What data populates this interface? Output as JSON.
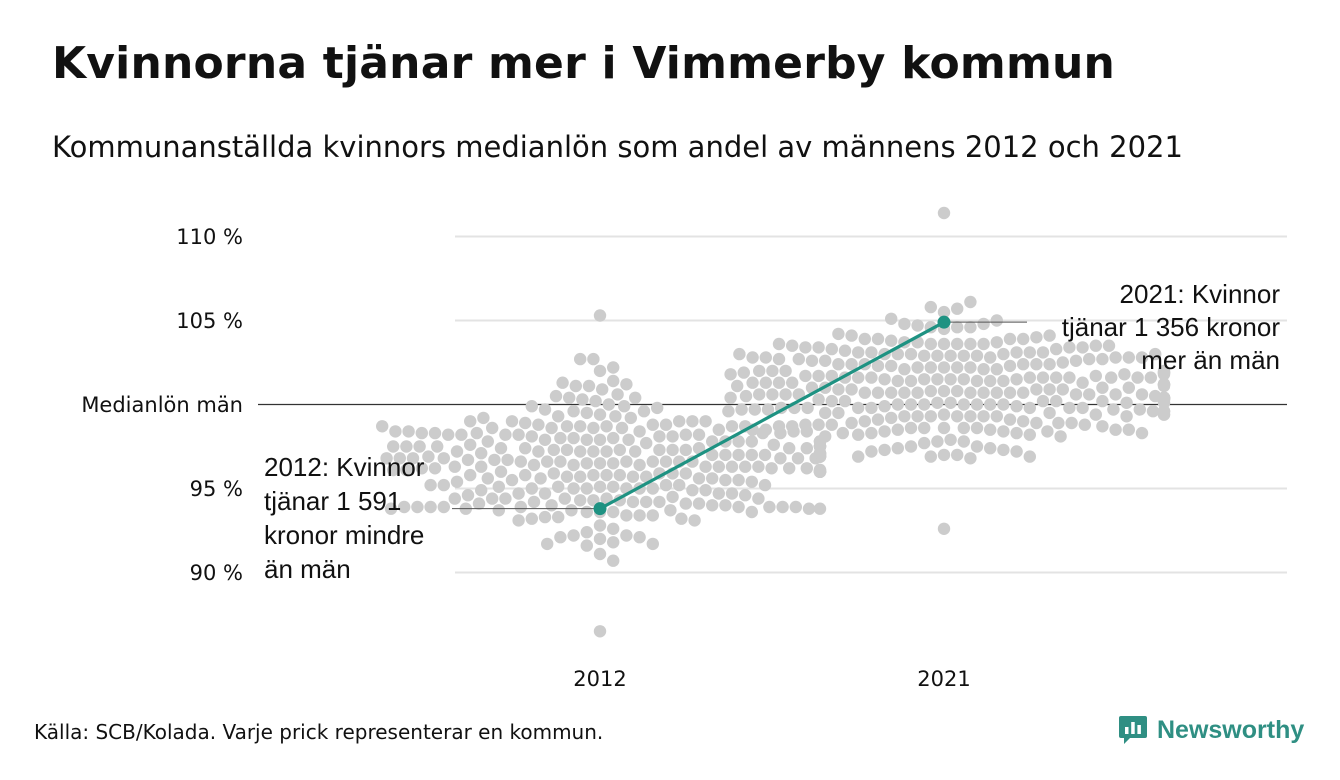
{
  "title": "Kvinnorna tjänar mer i Vimmerby kommun",
  "subtitle": "Kommunanställda kvinnors medianlön som andel av männens 2012 och 2021",
  "source": "Källa: SCB/Kolada. Varje prick representerar en kommun.",
  "brand": {
    "name": "Newsworthy",
    "color": "#2f8f83"
  },
  "chart_data": {
    "type": "scatter",
    "categories": [
      "2012",
      "2021"
    ],
    "y_ticks": [
      {
        "value": 90,
        "label": "90 %"
      },
      {
        "value": 95,
        "label": "95 %"
      },
      {
        "value": 100,
        "label": "Medianlön män"
      },
      {
        "value": 105,
        "label": "105 %"
      },
      {
        "value": 110,
        "label": "110 %"
      }
    ],
    "ylim": [
      85.5,
      112
    ],
    "grid": true,
    "colors": {
      "dots": "#cccccc",
      "highlight": "#1e9282",
      "grid": "#e3e3e3",
      "reference": "#333333"
    },
    "series": [
      {
        "name": "Vimmerby",
        "x": [
          "2012",
          "2021"
        ],
        "y": [
          93.8,
          104.9
        ]
      }
    ],
    "distribution": [
      {
        "category": "2012",
        "min": 86.5,
        "max": 105.3,
        "center": 96.5,
        "spread": 3.2,
        "count": 290
      },
      {
        "category": "2021",
        "min": 92.6,
        "max": 111.4,
        "center": 100.8,
        "spread": 2.9,
        "count": 290
      }
    ],
    "annotations": [
      {
        "category": "2012",
        "lines": [
          "2012: Kvinnor",
          "tjänar 1 591",
          "kronor mindre",
          "än män"
        ]
      },
      {
        "category": "2021",
        "lines": [
          "2021: Kvinnor",
          "tjänar 1 356 kronor",
          "mer än män"
        ]
      }
    ]
  }
}
